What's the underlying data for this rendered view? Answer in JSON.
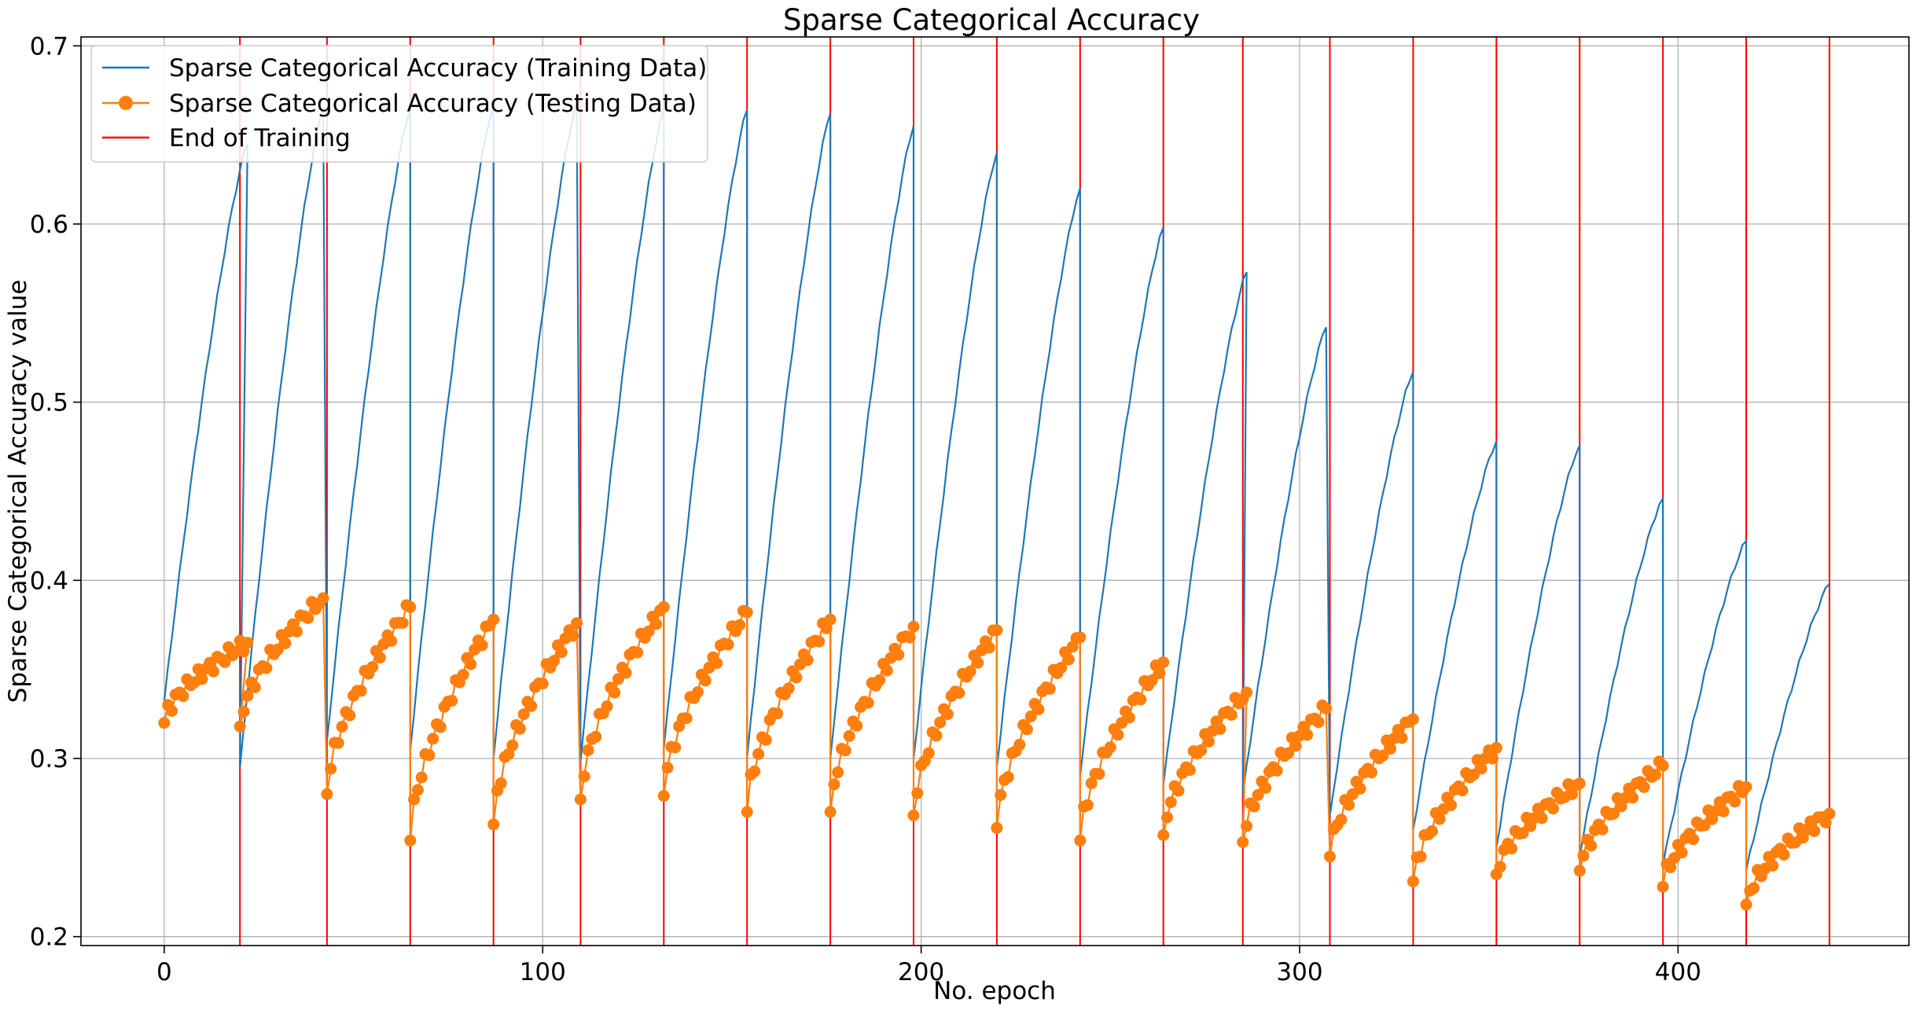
{
  "chart_data": {
    "type": "line",
    "title": "Sparse Categorical Accuracy",
    "xlabel": "No. epoch",
    "ylabel": "Sparse Categorical Accuracy value",
    "xlim": [
      -22,
      461
    ],
    "ylim": [
      0.195,
      0.705
    ],
    "xticks": [
      0,
      100,
      200,
      300,
      400
    ],
    "yticks": [
      0.2,
      0.3,
      0.4,
      0.5,
      0.6,
      0.7
    ],
    "grid": true,
    "legend_position": "top-left",
    "colors": {
      "train": "#1f77b4",
      "test": "#ff7f0e",
      "end": "#ff0000"
    },
    "segment_length": 22,
    "training_ends": [
      20,
      43,
      65,
      87,
      110,
      132,
      154,
      176,
      198,
      220,
      242,
      264,
      285,
      308,
      330,
      352,
      374,
      396,
      418,
      440
    ],
    "series": [
      {
        "name": "Sparse Categorical Accuracy (Training Data)",
        "kind": "line",
        "segments": [
          {
            "x0": 0,
            "start": 0.332,
            "end": 0.645
          },
          {
            "x0": 20,
            "start": 0.295,
            "end": 0.665
          },
          {
            "x0": 43,
            "start": 0.31,
            "end": 0.665
          },
          {
            "x0": 65,
            "start": 0.305,
            "end": 0.667
          },
          {
            "x0": 87,
            "start": 0.3,
            "end": 0.668
          },
          {
            "x0": 110,
            "start": 0.298,
            "end": 0.664
          },
          {
            "x0": 132,
            "start": 0.305,
            "end": 0.664
          },
          {
            "x0": 154,
            "start": 0.3,
            "end": 0.662
          },
          {
            "x0": 176,
            "start": 0.3,
            "end": 0.655
          },
          {
            "x0": 198,
            "start": 0.3,
            "end": 0.64
          },
          {
            "x0": 220,
            "start": 0.295,
            "end": 0.62
          },
          {
            "x0": 242,
            "start": 0.29,
            "end": 0.598
          },
          {
            "x0": 264,
            "start": 0.285,
            "end": 0.573
          },
          {
            "x0": 285,
            "start": 0.28,
            "end": 0.542
          },
          {
            "x0": 308,
            "start": 0.268,
            "end": 0.517
          },
          {
            "x0": 330,
            "start": 0.26,
            "end": 0.478
          },
          {
            "x0": 352,
            "start": 0.25,
            "end": 0.476
          },
          {
            "x0": 374,
            "start": 0.245,
            "end": 0.446
          },
          {
            "x0": 396,
            "start": 0.24,
            "end": 0.422
          },
          {
            "x0": 418,
            "start": 0.237,
            "end": 0.398
          }
        ]
      },
      {
        "name": "Sparse Categorical Accuracy (Testing Data)",
        "kind": "line-marker",
        "segments": [
          {
            "x0": 0,
            "start": 0.32,
            "end": 0.365
          },
          {
            "x0": 20,
            "start": 0.318,
            "end": 0.39
          },
          {
            "x0": 43,
            "start": 0.28,
            "end": 0.385
          },
          {
            "x0": 65,
            "start": 0.254,
            "end": 0.378
          },
          {
            "x0": 87,
            "start": 0.263,
            "end": 0.376
          },
          {
            "x0": 110,
            "start": 0.277,
            "end": 0.385
          },
          {
            "x0": 132,
            "start": 0.279,
            "end": 0.382
          },
          {
            "x0": 154,
            "start": 0.27,
            "end": 0.378
          },
          {
            "x0": 176,
            "start": 0.27,
            "end": 0.374
          },
          {
            "x0": 198,
            "start": 0.268,
            "end": 0.372
          },
          {
            "x0": 220,
            "start": 0.261,
            "end": 0.368
          },
          {
            "x0": 242,
            "start": 0.254,
            "end": 0.354
          },
          {
            "x0": 264,
            "start": 0.257,
            "end": 0.337
          },
          {
            "x0": 285,
            "start": 0.253,
            "end": 0.328
          },
          {
            "x0": 308,
            "start": 0.245,
            "end": 0.322
          },
          {
            "x0": 330,
            "start": 0.231,
            "end": 0.306
          },
          {
            "x0": 352,
            "start": 0.235,
            "end": 0.286
          },
          {
            "x0": 374,
            "start": 0.237,
            "end": 0.296
          },
          {
            "x0": 396,
            "start": 0.228,
            "end": 0.284
          },
          {
            "x0": 418,
            "start": 0.218,
            "end": 0.269
          }
        ]
      },
      {
        "name": "End of Training",
        "kind": "vline"
      }
    ]
  }
}
